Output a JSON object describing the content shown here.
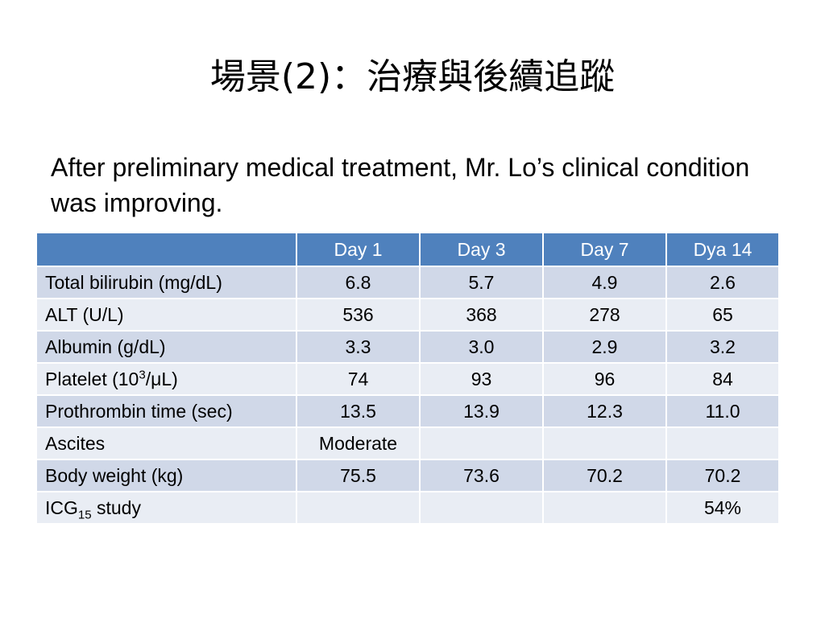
{
  "title": "場景(2)：治療與後續追蹤",
  "intro": "After preliminary medical treatment, Mr. Lo’s clinical condition was improving.",
  "table": {
    "headers": [
      "",
      "Day 1",
      "Day 3",
      "Day 7",
      "Dya 14"
    ],
    "rows": [
      {
        "label": "Total bilirubin (mg/dL)",
        "values": [
          "6.8",
          "5.7",
          "4.9",
          "2.6"
        ]
      },
      {
        "label": "ALT (U/L)",
        "values": [
          "536",
          "368",
          "278",
          "65"
        ]
      },
      {
        "label": "Albumin (g/dL)",
        "values": [
          "3.3",
          "3.0",
          "2.9",
          "3.2"
        ]
      },
      {
        "label_prefix": "Platelet (10",
        "label_sup": "3",
        "label_suffix": "/μL)",
        "values": [
          "74",
          "93",
          "96",
          "84"
        ]
      },
      {
        "label": "Prothrombin time (sec)",
        "values": [
          "13.5",
          "13.9",
          "12.3",
          "11.0"
        ]
      },
      {
        "label": "Ascites",
        "values": [
          "Moderate",
          "",
          "",
          ""
        ]
      },
      {
        "label": "Body weight (kg)",
        "values": [
          "75.5",
          "73.6",
          "70.2",
          "70.2"
        ]
      },
      {
        "label_prefix": "ICG",
        "label_sub": "15",
        "label_suffix": " study",
        "values": [
          "",
          "",
          "",
          "54%"
        ]
      }
    ]
  }
}
